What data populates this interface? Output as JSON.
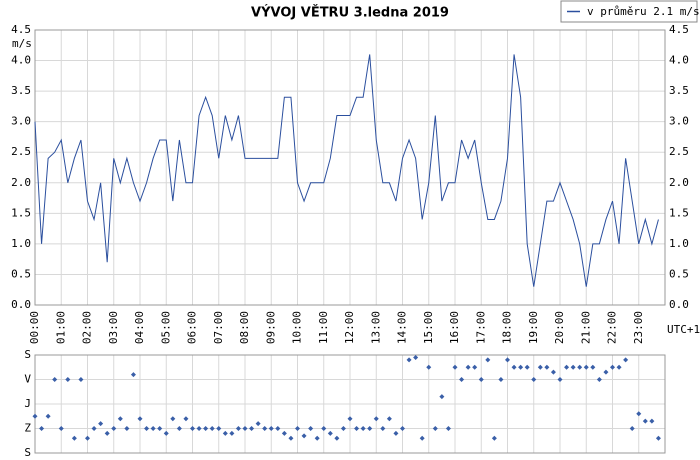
{
  "chart_data": [
    {
      "type": "line",
      "title": "VÝVOJ VĚTRU  3.ledna 2019",
      "y_label": "m/s",
      "x_label": "UTC+1",
      "x": [
        0,
        0.25,
        0.5,
        0.75,
        1,
        1.25,
        1.5,
        1.75,
        2,
        2.25,
        2.5,
        2.75,
        3,
        3.25,
        3.5,
        3.75,
        4,
        4.25,
        4.5,
        4.75,
        5,
        5.25,
        5.5,
        5.75,
        6,
        6.25,
        6.5,
        6.75,
        7,
        7.25,
        7.5,
        7.75,
        8,
        8.25,
        8.5,
        8.75,
        9,
        9.25,
        9.5,
        9.75,
        10,
        10.25,
        10.5,
        10.75,
        11,
        11.25,
        11.5,
        11.75,
        12,
        12.25,
        12.5,
        12.75,
        13,
        13.25,
        13.5,
        13.75,
        14,
        14.25,
        14.5,
        14.75,
        15,
        15.25,
        15.5,
        15.75,
        16,
        16.25,
        16.5,
        16.75,
        17,
        17.25,
        17.5,
        17.75,
        18,
        18.25,
        18.5,
        18.75,
        19,
        19.25,
        19.5,
        19.75,
        20,
        20.25,
        20.5,
        20.75,
        21,
        21.25,
        21.5,
        21.75,
        22,
        22.25,
        22.5,
        22.75,
        23,
        23.25,
        23.5,
        23.75
      ],
      "series": [
        {
          "name": "v průměru 2.1 m/s",
          "color": "#2b4f9e",
          "values": [
            3.0,
            1.0,
            2.4,
            2.5,
            2.7,
            2.0,
            2.4,
            2.7,
            1.7,
            1.4,
            2.0,
            0.7,
            2.4,
            2.0,
            2.4,
            2.0,
            1.7,
            2.0,
            2.4,
            2.7,
            2.7,
            1.7,
            2.7,
            2.0,
            2.0,
            3.1,
            3.4,
            3.1,
            2.4,
            3.1,
            2.7,
            3.1,
            2.4,
            2.4,
            2.4,
            2.4,
            2.4,
            2.4,
            3.4,
            3.4,
            2.0,
            1.7,
            2.0,
            2.0,
            2.0,
            2.4,
            3.1,
            3.1,
            3.1,
            3.4,
            3.4,
            4.1,
            2.7,
            2.0,
            2.0,
            1.7,
            2.4,
            2.7,
            2.4,
            1.4,
            2.0,
            3.1,
            1.7,
            2.0,
            2.0,
            2.7,
            2.4,
            2.7,
            2.0,
            1.4,
            1.4,
            1.7,
            2.4,
            4.1,
            3.4,
            1.0,
            0.3,
            1.0,
            1.7,
            1.7,
            2.0,
            1.7,
            1.4,
            1.0,
            0.3,
            1.0,
            1.0,
            1.4,
            1.7,
            1.0,
            2.4,
            1.7,
            1.0,
            1.4,
            1.0,
            1.4
          ]
        }
      ],
      "xlim": [
        0,
        24
      ],
      "xticks": [
        {
          "value": 0,
          "label": "00:00"
        },
        {
          "value": 1,
          "label": "01:00"
        },
        {
          "value": 2,
          "label": "02:00"
        },
        {
          "value": 3,
          "label": "03:00"
        },
        {
          "value": 4,
          "label": "04:00"
        },
        {
          "value": 5,
          "label": "05:00"
        },
        {
          "value": 6,
          "label": "06:00"
        },
        {
          "value": 7,
          "label": "07:00"
        },
        {
          "value": 8,
          "label": "08:00"
        },
        {
          "value": 9,
          "label": "09:00"
        },
        {
          "value": 10,
          "label": "10:00"
        },
        {
          "value": 11,
          "label": "11:00"
        },
        {
          "value": 12,
          "label": "12:00"
        },
        {
          "value": 13,
          "label": "13:00"
        },
        {
          "value": 14,
          "label": "14:00"
        },
        {
          "value": 15,
          "label": "15:00"
        },
        {
          "value": 16,
          "label": "16:00"
        },
        {
          "value": 17,
          "label": "17:00"
        },
        {
          "value": 18,
          "label": "18:00"
        },
        {
          "value": 19,
          "label": "19:00"
        },
        {
          "value": 20,
          "label": "20:00"
        },
        {
          "value": 21,
          "label": "21:00"
        },
        {
          "value": 22,
          "label": "22:00"
        },
        {
          "value": 23,
          "label": "23:00"
        }
      ],
      "ylim": [
        0,
        4.5
      ],
      "yticks": [
        {
          "value": 0,
          "label": "0.0"
        },
        0.5,
        {
          "value": 1,
          "label": "1.0"
        },
        1.5,
        {
          "value": 2,
          "label": "2.0"
        },
        2.5,
        {
          "value": 3,
          "label": "3.0"
        },
        3.5,
        {
          "value": 4,
          "label": "4.0"
        },
        4.5
      ],
      "grid": true,
      "legend": "top-right"
    },
    {
      "type": "scatter",
      "x": [
        0,
        0.25,
        0.5,
        0.75,
        1,
        1.25,
        1.5,
        1.75,
        2,
        2.25,
        2.5,
        2.75,
        3,
        3.25,
        3.5,
        3.75,
        4,
        4.25,
        4.5,
        4.75,
        5,
        5.25,
        5.5,
        5.75,
        6,
        6.25,
        6.5,
        6.75,
        7,
        7.25,
        7.5,
        7.75,
        8,
        8.25,
        8.5,
        8.75,
        9,
        9.25,
        9.5,
        9.75,
        10,
        10.25,
        10.5,
        10.75,
        11,
        11.25,
        11.5,
        11.75,
        12,
        12.25,
        12.5,
        12.75,
        13,
        13.25,
        13.5,
        13.75,
        14,
        14.25,
        14.5,
        14.75,
        15,
        15.25,
        15.5,
        15.75,
        16,
        16.25,
        16.5,
        16.75,
        17,
        17.25,
        17.5,
        17.75,
        18,
        18.25,
        18.5,
        18.75,
        19,
        19.25,
        19.5,
        19.75,
        20,
        20.25,
        20.5,
        20.75,
        21,
        21.25,
        21.5,
        21.75,
        22,
        22.25,
        22.5,
        22.75,
        23,
        23.25,
        23.5,
        23.75
      ],
      "series": [
        {
          "color": "#3a5fa8",
          "values": [
            1.5,
            1.0,
            1.5,
            3.0,
            1.0,
            3.0,
            0.6,
            3.0,
            0.6,
            1.0,
            1.2,
            0.8,
            1.0,
            1.4,
            1.0,
            3.2,
            1.4,
            1.0,
            1.0,
            1.0,
            0.8,
            1.4,
            1.0,
            1.4,
            1.0,
            1.0,
            1.0,
            1.0,
            1.0,
            0.8,
            0.8,
            1.0,
            1.0,
            1.0,
            1.2,
            1.0,
            1.0,
            1.0,
            0.8,
            0.6,
            1.0,
            0.7,
            1.0,
            0.6,
            1.0,
            0.8,
            0.6,
            1.0,
            1.4,
            1.0,
            1.0,
            1.0,
            1.4,
            1.0,
            1.4,
            0.8,
            1.0,
            3.8,
            3.9,
            0.6,
            3.5,
            1.0,
            2.3,
            1.0,
            3.5,
            3.0,
            3.5,
            3.5,
            3.0,
            3.8,
            0.6,
            3.0,
            3.8,
            3.5,
            3.5,
            3.5,
            3.0,
            3.5,
            3.5,
            3.3,
            3.0,
            3.5,
            3.5,
            3.5,
            3.5,
            3.5,
            3.0,
            3.3,
            3.5,
            3.5,
            3.8,
            1.0,
            1.6,
            1.3,
            1.3,
            0.6
          ]
        }
      ],
      "xlim": [
        0,
        24
      ],
      "xticks": [
        0,
        1,
        2,
        3,
        4,
        5,
        6,
        7,
        8,
        9,
        10,
        11,
        12,
        13,
        14,
        15,
        16,
        17,
        18,
        19,
        20,
        21,
        22,
        23
      ],
      "ylim": [
        0,
        4
      ],
      "yticks": [
        {
          "value": 0,
          "label": "S"
        },
        {
          "value": 1,
          "label": "Z"
        },
        {
          "value": 2,
          "label": "J"
        },
        {
          "value": 3,
          "label": "V"
        },
        {
          "value": 4,
          "label": "S"
        }
      ],
      "grid": true
    }
  ]
}
